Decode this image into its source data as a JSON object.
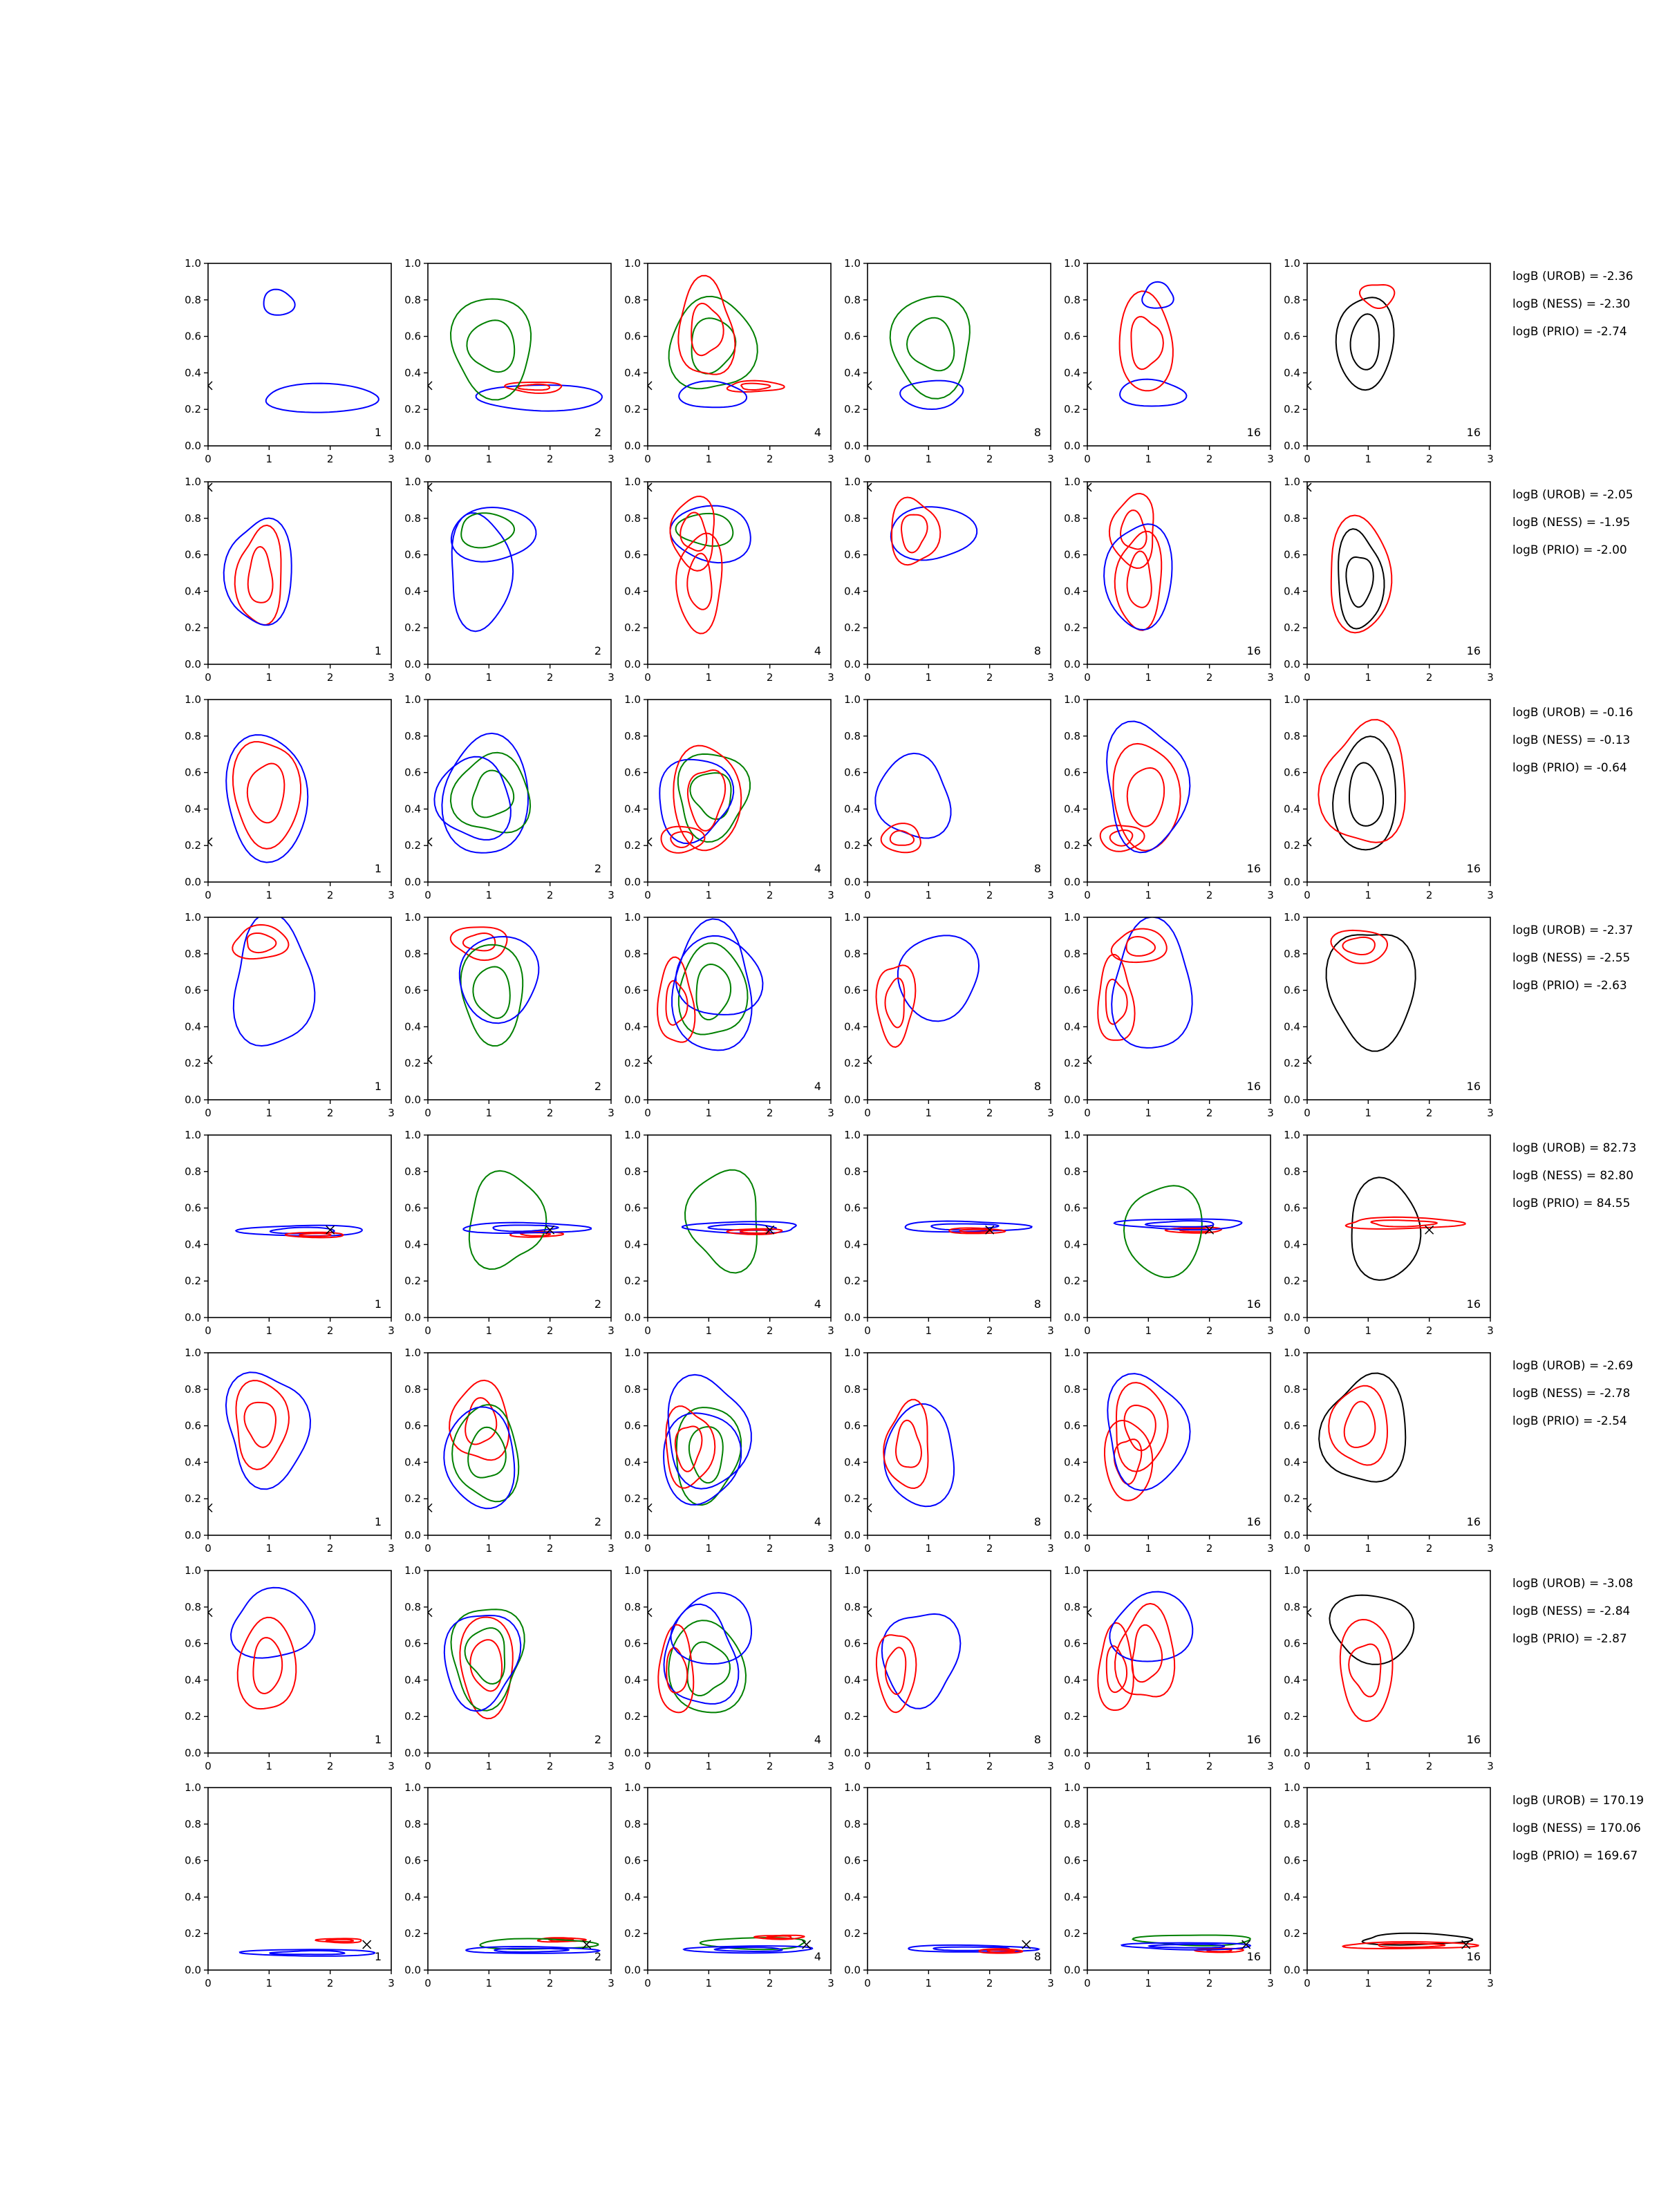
{
  "colors": {
    "urob": "#0000ff",
    "ness": "#ff0000",
    "prio": "#008000",
    "single": "#000000"
  },
  "chart_data": {
    "type": "contour",
    "panel_grid": {
      "rows": 8,
      "cols": 6
    },
    "xlim": [
      0,
      3
    ],
    "ylim": [
      0,
      1
    ],
    "x_ticks": [
      "0",
      "1",
      "2",
      "3"
    ],
    "y_ticks": [
      "0.0",
      "0.2",
      "0.4",
      "0.6",
      "0.8",
      "1.0"
    ],
    "column_labels": [
      "1",
      "2",
      "4",
      "8",
      "16",
      "16"
    ],
    "rows": [
      {
        "marker": [
          0,
          0.33
        ],
        "logB": [
          "logB (UROB) = -2.36",
          "logB (NESS) = -2.30",
          "logB (PRIO) = -2.74"
        ],
        "blobs": [
          {
            "c": "urob",
            "x": 1.3,
            "y": 0.8,
            "sx": 0.35,
            "sy": 0.09,
            "k": 1
          },
          {
            "c": "urob",
            "x": 2.0,
            "y": 0.3,
            "sx": 1.3,
            "sy": 0.1,
            "k": 1
          },
          {
            "c": "ness",
            "x": 1.9,
            "y": 0.3,
            "sx": 0.6,
            "sy": 0.04,
            "k": 2
          },
          {
            "c": "prio",
            "x": 1.2,
            "y": 0.55,
            "sx": 0.9,
            "sy": 0.35,
            "k": 2
          },
          {
            "c": "urob",
            "x": 1.2,
            "y": 0.3,
            "sx": 0.7,
            "sy": 0.1,
            "k": 1
          },
          {
            "c": "ness",
            "x": 1.1,
            "y": 0.6,
            "sx": 0.6,
            "sy": 0.35,
            "k": 2
          }
        ]
      },
      {
        "marker": [
          0,
          0.97
        ],
        "logB": [
          "logB (UROB) = -2.05",
          "logB (NESS) = -1.95",
          "logB (PRIO) = -2.00"
        ],
        "blobs": [
          {
            "c": "ness",
            "x": 1.0,
            "y": 0.45,
            "sx": 0.5,
            "sy": 0.35,
            "k": 2
          },
          {
            "c": "urob",
            "x": 1.0,
            "y": 0.5,
            "sx": 0.7,
            "sy": 0.4,
            "k": 1
          },
          {
            "c": "prio",
            "x": 1.1,
            "y": 0.75,
            "sx": 0.6,
            "sy": 0.12,
            "k": 1
          },
          {
            "c": "urob",
            "x": 1.2,
            "y": 0.75,
            "sx": 0.9,
            "sy": 0.2,
            "k": 1
          },
          {
            "c": "ness",
            "x": 0.9,
            "y": 0.7,
            "sx": 0.5,
            "sy": 0.25,
            "k": 2
          }
        ]
      },
      {
        "marker": [
          0,
          0.22
        ],
        "logB": [
          "logB (UROB) = -0.16",
          "logB (NESS) = -0.13",
          "logB (PRIO) = -0.64"
        ],
        "blobs": [
          {
            "c": "ness",
            "x": 1.1,
            "y": 0.5,
            "sx": 0.7,
            "sy": 0.4,
            "k": 2
          },
          {
            "c": "urob",
            "x": 1.1,
            "y": 0.5,
            "sx": 0.9,
            "sy": 0.45,
            "k": 1
          },
          {
            "c": "prio",
            "x": 1.2,
            "y": 0.45,
            "sx": 0.8,
            "sy": 0.3,
            "k": 2
          },
          {
            "c": "urob",
            "x": 0.9,
            "y": 0.45,
            "sx": 0.8,
            "sy": 0.3,
            "k": 1
          },
          {
            "c": "ness",
            "x": 0.7,
            "y": 0.25,
            "sx": 0.45,
            "sy": 0.1,
            "k": 2
          }
        ]
      },
      {
        "marker": [
          0,
          0.22
        ],
        "logB": [
          "logB (UROB) = -2.37",
          "logB (NESS) = -2.55",
          "logB (PRIO) = -2.63"
        ],
        "blobs": [
          {
            "c": "urob",
            "x": 1.2,
            "y": 0.6,
            "sx": 0.9,
            "sy": 0.45,
            "k": 1
          },
          {
            "c": "ness",
            "x": 1.0,
            "y": 0.85,
            "sx": 0.6,
            "sy": 0.12,
            "k": 2
          },
          {
            "c": "prio",
            "x": 1.2,
            "y": 0.6,
            "sx": 0.7,
            "sy": 0.35,
            "k": 2
          },
          {
            "c": "urob",
            "x": 1.3,
            "y": 0.7,
            "sx": 0.9,
            "sy": 0.3,
            "k": 1
          },
          {
            "c": "ness",
            "x": 0.6,
            "y": 0.5,
            "sx": 0.4,
            "sy": 0.3,
            "k": 2
          }
        ]
      },
      {
        "marker": [
          2.0,
          0.48
        ],
        "logB": [
          "logB (UROB) = 82.73",
          "logB (NESS) = 82.80",
          "logB (PRIO) = 84.55"
        ],
        "blobs": [
          {
            "c": "urob",
            "x": 1.7,
            "y": 0.48,
            "sx": 1.3,
            "sy": 0.04,
            "k": 2
          },
          {
            "c": "ness",
            "x": 1.9,
            "y": 0.48,
            "sx": 0.6,
            "sy": 0.02,
            "k": 2
          },
          {
            "c": "prio",
            "x": 1.4,
            "y": 0.5,
            "sx": 0.8,
            "sy": 0.35,
            "k": 1
          }
        ]
      },
      {
        "marker": [
          0,
          0.15
        ],
        "logB": [
          "logB (UROB) = -2.69",
          "logB (NESS) = -2.78",
          "logB (PRIO) = -2.54"
        ],
        "blobs": [
          {
            "c": "urob",
            "x": 1.1,
            "y": 0.55,
            "sx": 0.9,
            "sy": 0.4,
            "k": 1
          },
          {
            "c": "ness",
            "x": 1.0,
            "y": 0.6,
            "sx": 0.6,
            "sy": 0.3,
            "k": 2
          },
          {
            "c": "prio",
            "x": 1.1,
            "y": 0.45,
            "sx": 0.7,
            "sy": 0.35,
            "k": 2
          },
          {
            "c": "urob",
            "x": 1.0,
            "y": 0.45,
            "sx": 0.8,
            "sy": 0.35,
            "k": 1
          },
          {
            "c": "ness",
            "x": 0.8,
            "y": 0.45,
            "sx": 0.5,
            "sy": 0.3,
            "k": 2
          }
        ]
      },
      {
        "marker": [
          0,
          0.77
        ],
        "logB": [
          "logB (UROB) = -3.08",
          "logB (NESS) = -2.84",
          "logB (PRIO) = -2.87"
        ],
        "blobs": [
          {
            "c": "urob",
            "x": 1.2,
            "y": 0.7,
            "sx": 0.9,
            "sy": 0.25,
            "k": 1
          },
          {
            "c": "ness",
            "x": 1.1,
            "y": 0.5,
            "sx": 0.6,
            "sy": 0.35,
            "k": 2
          },
          {
            "c": "prio",
            "x": 1.1,
            "y": 0.5,
            "sx": 0.8,
            "sy": 0.35,
            "k": 2
          },
          {
            "c": "urob",
            "x": 1.0,
            "y": 0.5,
            "sx": 0.8,
            "sy": 0.35,
            "k": 1
          },
          {
            "c": "ness",
            "x": 0.6,
            "y": 0.45,
            "sx": 0.4,
            "sy": 0.3,
            "k": 2
          }
        ]
      },
      {
        "marker": [
          2.6,
          0.14
        ],
        "logB": [
          "logB (UROB) = 170.19",
          "logB (NESS) = 170.06",
          "logB (PRIO) = 169.67"
        ],
        "blobs": [
          {
            "c": "urob",
            "x": 1.8,
            "y": 0.13,
            "sx": 1.4,
            "sy": 0.025,
            "k": 2
          },
          {
            "c": "ness",
            "x": 2.3,
            "y": 0.14,
            "sx": 0.5,
            "sy": 0.015,
            "k": 2
          },
          {
            "c": "prio",
            "x": 1.9,
            "y": 0.14,
            "sx": 1.2,
            "sy": 0.04,
            "k": 1
          }
        ]
      }
    ]
  }
}
